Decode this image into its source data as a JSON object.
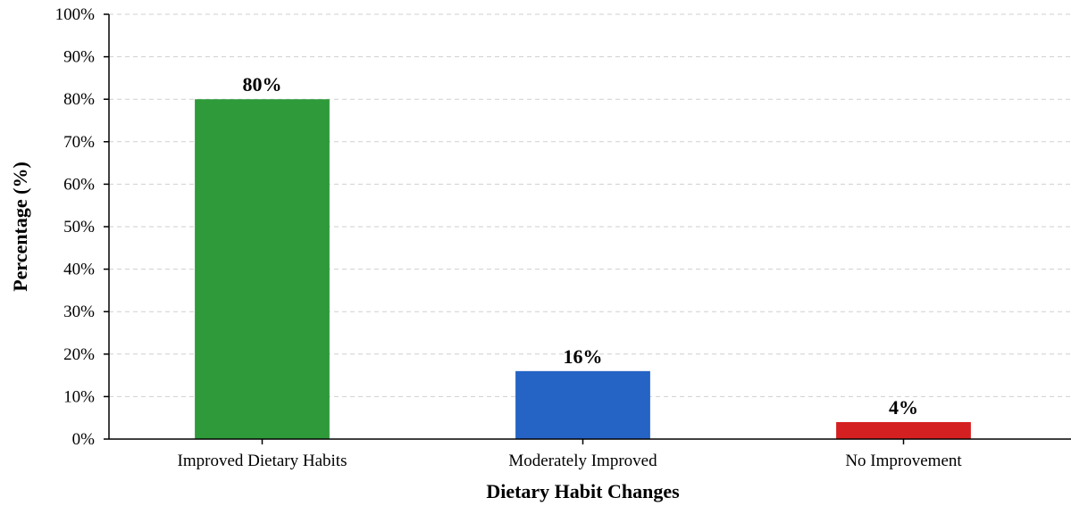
{
  "chart_data": {
    "type": "bar",
    "title": "",
    "xlabel": "Dietary Habit Changes",
    "ylabel": "Percentage (%)",
    "ylim": [
      0,
      100
    ],
    "ytick_step": 10,
    "ytick_suffix": "%",
    "grid": true,
    "categories": [
      "Improved Dietary Habits",
      "Moderately Improved",
      "No Improvement"
    ],
    "values": [
      80,
      16,
      4
    ],
    "value_labels": [
      "80%",
      "16%",
      "4%"
    ],
    "bar_colors": [
      "#2e9a3a",
      "#2563c4",
      "#d42020"
    ]
  }
}
